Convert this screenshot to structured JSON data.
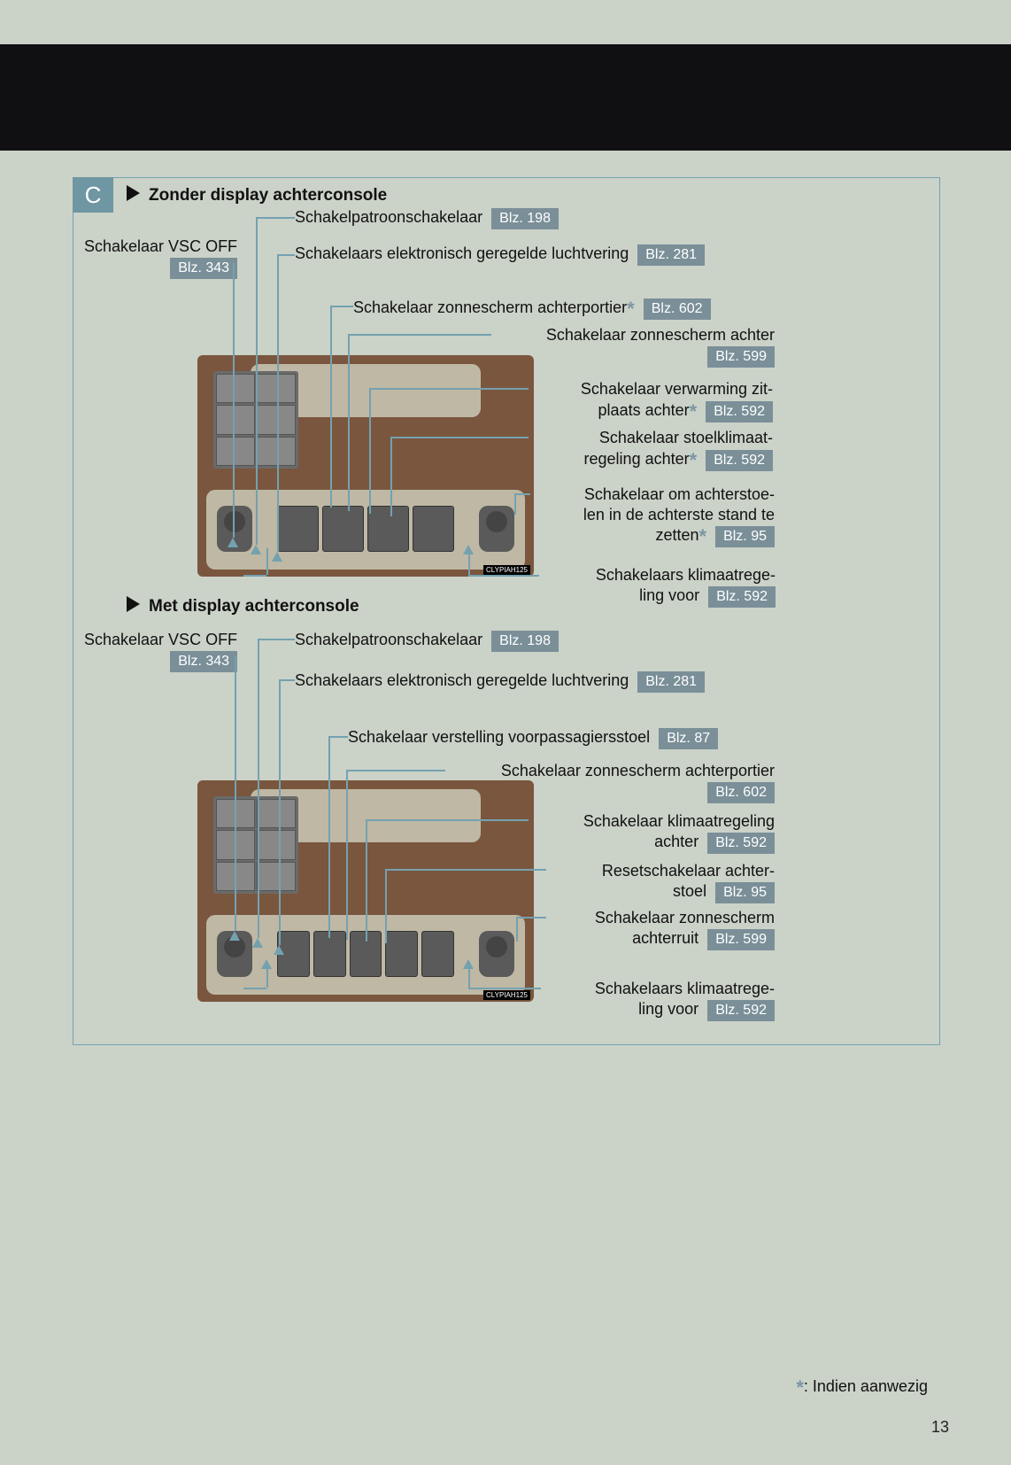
{
  "page_number": "13",
  "section_letter": "C",
  "section1_title": "Zonder display achterconsole",
  "section2_title": "Met display achterconsole",
  "footnote_symbol": "*",
  "footnote_text": ": Indien aanwezig",
  "console_watermark": "CLYPIAH125",
  "labels": {
    "vsc_off": "Schakelaar VSC OFF",
    "vsc_off_page": "Blz. 343",
    "patroon": "Schakelpatroonschakelaar",
    "patroon_page": "Blz. 198",
    "elv": "Schakelaars elektronisch geregelde luchtvering",
    "elv_page": "Blz. 281",
    "zon_achterportier": "Schakelaar zonnescherm achterportier",
    "zon_achterportier_page": "Blz. 602",
    "zon_achter": "Schakelaar zonnescherm achter",
    "zon_achter_page": "Blz. 599",
    "verwarming_zit": "Schakelaar verwarming zit­plaats achter",
    "verwarming_zit_page": "Blz. 592",
    "stoelklimaat": "Schakelaar stoelklimaat­regeling achter",
    "stoelklimaat_page": "Blz. 592",
    "achterstoel_stand": "Schakelaar om achterstoe­len in de achterste stand te zetten",
    "achterstoel_stand_page": "Blz. 95",
    "klimaat_voor": "Schakelaars klimaatrege­ling voor",
    "klimaat_voor_page": "Blz. 592",
    "verstelling_voor": "Schakelaar verstelling voorpassagiersstoel",
    "verstelling_voor_page": "Blz. 87",
    "klimaat_achter": "Schakelaar klimaatregeling achter",
    "klimaat_achter_page": "Blz. 592",
    "reset_achterstoel": "Resetschakelaar achter­stoel",
    "reset_achterstoel_page": "Blz. 95",
    "zon_achterruit": "Schakelaar zonnescherm achterruit",
    "zon_achterruit_page": "Blz. 599"
  },
  "colors": {
    "page_bg": "#cbd2c8",
    "top_bar": "#101012",
    "box_border": "#73a3b3",
    "badge_bg": "#6f96a3",
    "blz_bg": "#7a8f98",
    "leader": "#74a1b0",
    "asterisk": "#7a97a5",
    "console_wood": "#7a563e",
    "console_pad": "#bfb8a4"
  }
}
